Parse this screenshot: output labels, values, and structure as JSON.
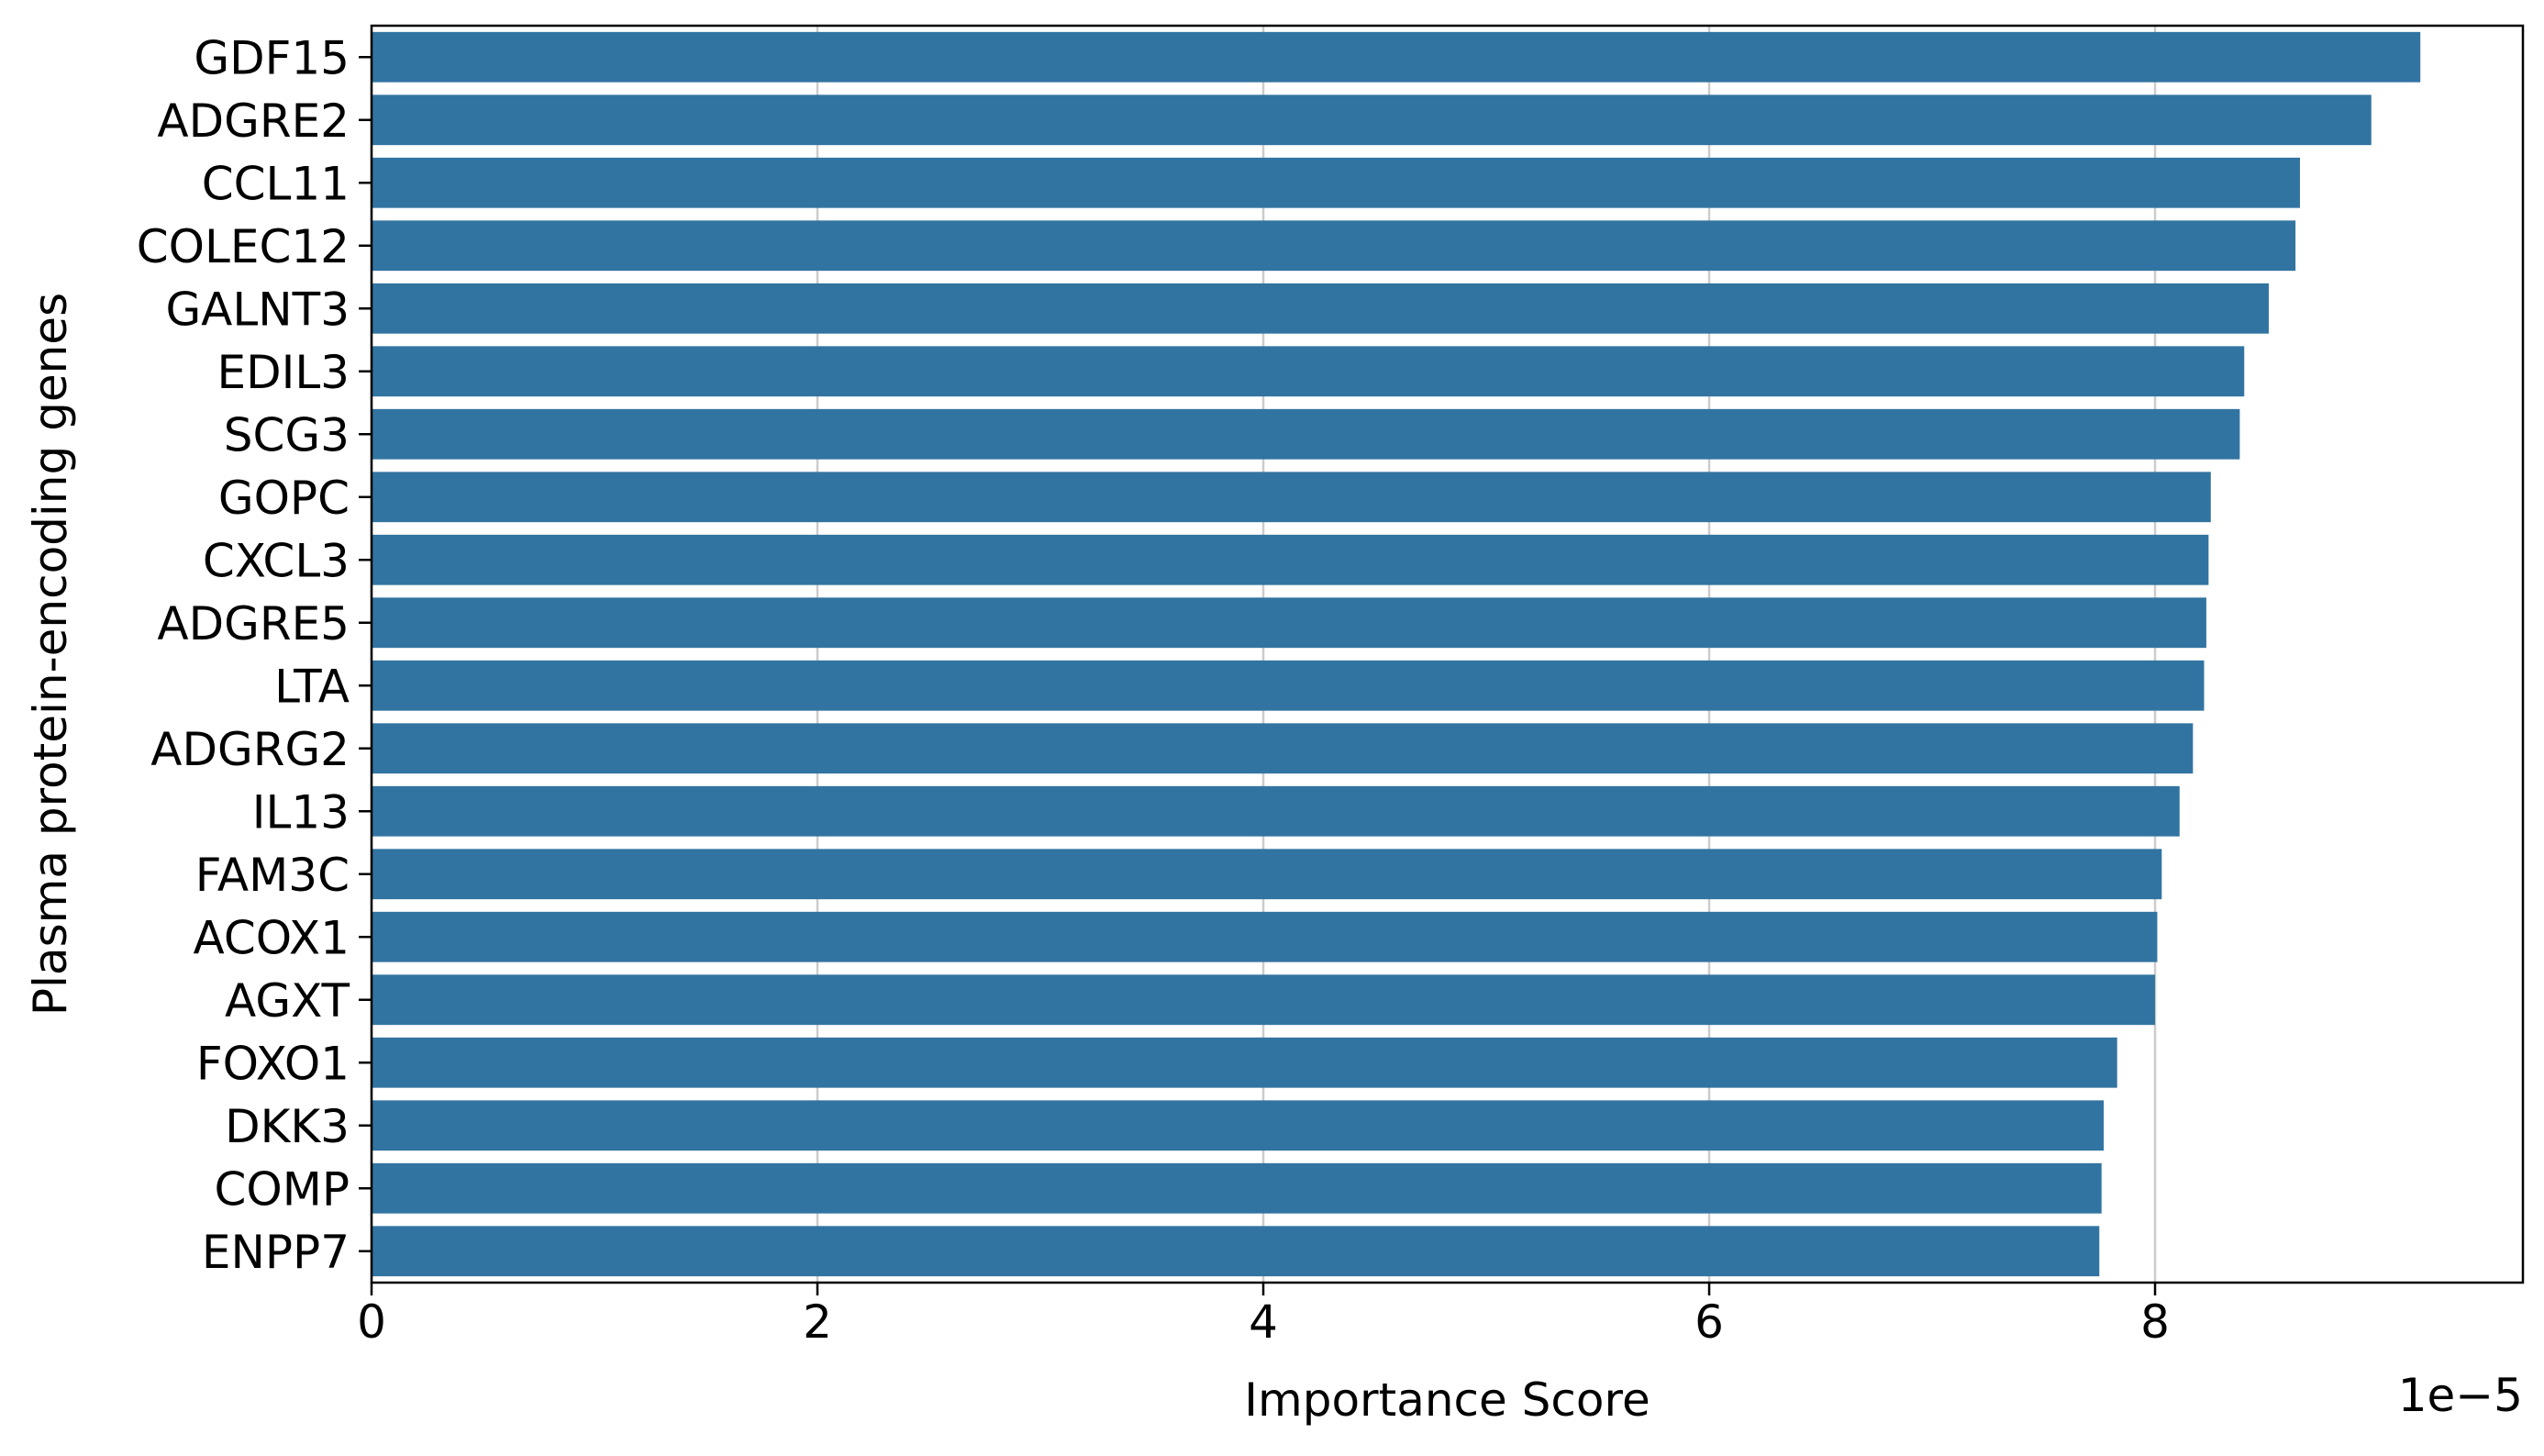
{
  "chart_data": {
    "type": "bar",
    "orientation": "horizontal",
    "title": "",
    "xlabel": "Importance Score",
    "ylabel": "Plasma protein-encoding genes",
    "x_offset_label": "1e−5",
    "xlim": [
      0,
      9.65
    ],
    "xticks": [
      0,
      2,
      4,
      6,
      8
    ],
    "xtick_labels": [
      "0",
      "2",
      "4",
      "6",
      "8"
    ],
    "grid": "x",
    "bar_color": "#3274a1",
    "categories": [
      "GDF15",
      "ADGRE2",
      "CCL11",
      "COLEC12",
      "GALNT3",
      "EDIL3",
      "SCG3",
      "GOPC",
      "CXCL3",
      "ADGRE5",
      "LTA",
      "ADGRG2",
      "IL13",
      "FAM3C",
      "ACOX1",
      "AGXT",
      "FOXO1",
      "DKK3",
      "COMP",
      "ENPP7"
    ],
    "values": [
      9.19,
      8.97,
      8.65,
      8.63,
      8.51,
      8.4,
      8.38,
      8.25,
      8.24,
      8.23,
      8.22,
      8.17,
      8.11,
      8.03,
      8.01,
      8.0,
      7.83,
      7.77,
      7.76,
      7.75
    ]
  }
}
